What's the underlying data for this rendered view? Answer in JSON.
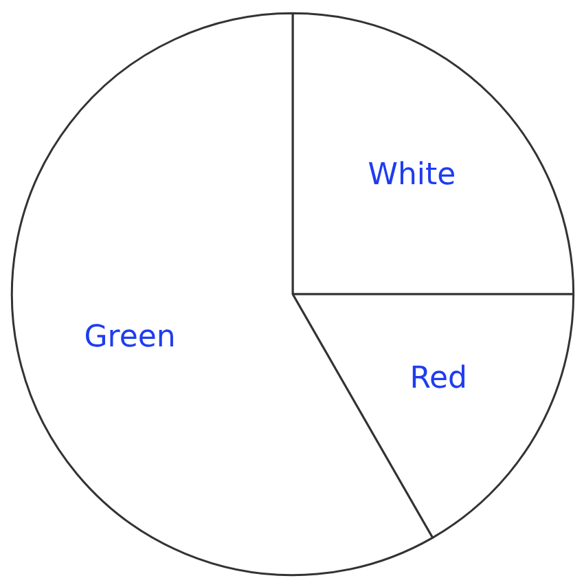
{
  "chart_data": {
    "type": "pie",
    "categories": [
      "White",
      "Red",
      "Green"
    ],
    "values": [
      25,
      16.7,
      58.3
    ],
    "colors": [
      "#ffffff",
      "#ffffff",
      "#ffffff"
    ]
  }
}
